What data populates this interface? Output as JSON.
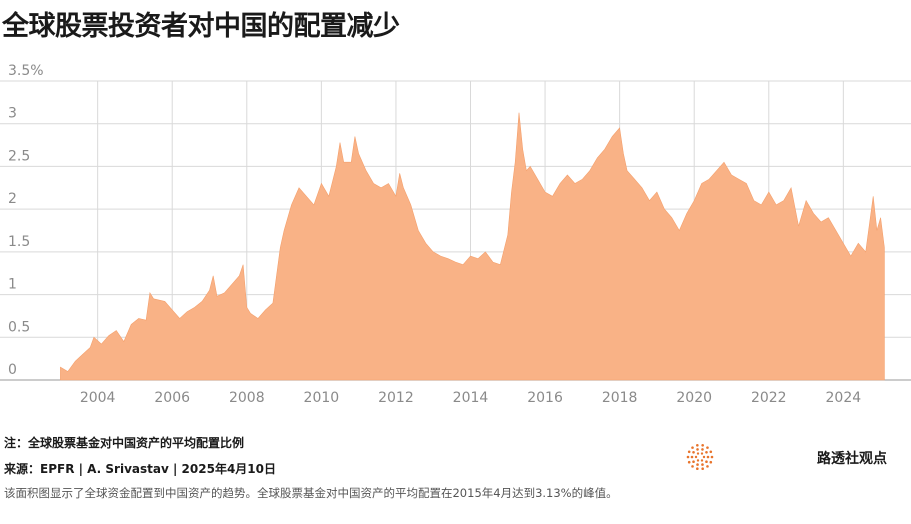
{
  "title": "全球股票投资者对中国的配置减少",
  "note": "注：全球股票基金对中国资产的平均配置比例",
  "source": "来源：EPFR | A. Srivastav | 2025年4月10日",
  "description": "该面积图显示了全球资金配置到中国资产的趋势。全球股票基金对中国资产的平均配置在2015年4月达到3.13%的峰值。",
  "brand": {
    "name": "路透社观点",
    "icon": "reuters-dot-logo-icon"
  },
  "colors": {
    "area": "#f9b286",
    "grid": "#d9d9d9",
    "axis_text": "#8a8a8a",
    "brand_orange": "#e8742c"
  },
  "chart_data": {
    "type": "area",
    "ylim": [
      0,
      3.5
    ],
    "xlim": [
      2002.4,
      2025.6
    ],
    "y_ticks": [
      0,
      0.5,
      1,
      1.5,
      2,
      2.5,
      3,
      3.5
    ],
    "y_tick_labels": [
      "0",
      "0.5",
      "1",
      "1.5",
      "2",
      "2.5",
      "3",
      "3.5%"
    ],
    "x_ticks": [
      2004,
      2006,
      2008,
      2010,
      2012,
      2014,
      2016,
      2018,
      2020,
      2022,
      2024
    ],
    "x_tick_labels": [
      "2004",
      "2006",
      "2008",
      "2010",
      "2012",
      "2014",
      "2016",
      "2018",
      "2020",
      "2022",
      "2024"
    ],
    "grid": true,
    "points": [
      [
        2003.0,
        0.15
      ],
      [
        2003.2,
        0.1
      ],
      [
        2003.4,
        0.22
      ],
      [
        2003.6,
        0.3
      ],
      [
        2003.8,
        0.38
      ],
      [
        2003.9,
        0.5
      ],
      [
        2004.1,
        0.42
      ],
      [
        2004.3,
        0.52
      ],
      [
        2004.5,
        0.58
      ],
      [
        2004.7,
        0.45
      ],
      [
        2004.9,
        0.65
      ],
      [
        2005.1,
        0.72
      ],
      [
        2005.3,
        0.7
      ],
      [
        2005.4,
        1.02
      ],
      [
        2005.5,
        0.95
      ],
      [
        2005.8,
        0.92
      ],
      [
        2006.0,
        0.82
      ],
      [
        2006.2,
        0.72
      ],
      [
        2006.4,
        0.8
      ],
      [
        2006.6,
        0.85
      ],
      [
        2006.8,
        0.92
      ],
      [
        2007.0,
        1.05
      ],
      [
        2007.1,
        1.22
      ],
      [
        2007.2,
        0.98
      ],
      [
        2007.4,
        1.02
      ],
      [
        2007.6,
        1.12
      ],
      [
        2007.8,
        1.22
      ],
      [
        2007.9,
        1.35
      ],
      [
        2008.0,
        0.85
      ],
      [
        2008.1,
        0.78
      ],
      [
        2008.3,
        0.72
      ],
      [
        2008.5,
        0.82
      ],
      [
        2008.7,
        0.9
      ],
      [
        2008.9,
        1.55
      ],
      [
        2009.0,
        1.75
      ],
      [
        2009.2,
        2.05
      ],
      [
        2009.4,
        2.25
      ],
      [
        2009.6,
        2.15
      ],
      [
        2009.8,
        2.05
      ],
      [
        2010.0,
        2.3
      ],
      [
        2010.2,
        2.15
      ],
      [
        2010.4,
        2.5
      ],
      [
        2010.5,
        2.78
      ],
      [
        2010.6,
        2.55
      ],
      [
        2010.8,
        2.55
      ],
      [
        2010.9,
        2.85
      ],
      [
        2011.0,
        2.65
      ],
      [
        2011.2,
        2.45
      ],
      [
        2011.4,
        2.3
      ],
      [
        2011.6,
        2.25
      ],
      [
        2011.8,
        2.3
      ],
      [
        2012.0,
        2.15
      ],
      [
        2012.1,
        2.42
      ],
      [
        2012.2,
        2.25
      ],
      [
        2012.4,
        2.05
      ],
      [
        2012.6,
        1.75
      ],
      [
        2012.8,
        1.6
      ],
      [
        2013.0,
        1.5
      ],
      [
        2013.2,
        1.45
      ],
      [
        2013.4,
        1.42
      ],
      [
        2013.6,
        1.38
      ],
      [
        2013.8,
        1.35
      ],
      [
        2014.0,
        1.45
      ],
      [
        2014.2,
        1.42
      ],
      [
        2014.4,
        1.5
      ],
      [
        2014.6,
        1.38
      ],
      [
        2014.8,
        1.35
      ],
      [
        2015.0,
        1.7
      ],
      [
        2015.1,
        2.2
      ],
      [
        2015.2,
        2.55
      ],
      [
        2015.3,
        3.13
      ],
      [
        2015.4,
        2.7
      ],
      [
        2015.5,
        2.45
      ],
      [
        2015.6,
        2.5
      ],
      [
        2015.8,
        2.35
      ],
      [
        2016.0,
        2.2
      ],
      [
        2016.2,
        2.15
      ],
      [
        2016.4,
        2.3
      ],
      [
        2016.6,
        2.4
      ],
      [
        2016.8,
        2.3
      ],
      [
        2017.0,
        2.35
      ],
      [
        2017.2,
        2.45
      ],
      [
        2017.4,
        2.6
      ],
      [
        2017.6,
        2.7
      ],
      [
        2017.8,
        2.85
      ],
      [
        2018.0,
        2.95
      ],
      [
        2018.1,
        2.65
      ],
      [
        2018.2,
        2.45
      ],
      [
        2018.4,
        2.35
      ],
      [
        2018.6,
        2.25
      ],
      [
        2018.8,
        2.1
      ],
      [
        2019.0,
        2.2
      ],
      [
        2019.2,
        2.0
      ],
      [
        2019.4,
        1.9
      ],
      [
        2019.6,
        1.75
      ],
      [
        2019.8,
        1.95
      ],
      [
        2020.0,
        2.1
      ],
      [
        2020.2,
        2.3
      ],
      [
        2020.4,
        2.35
      ],
      [
        2020.6,
        2.45
      ],
      [
        2020.8,
        2.55
      ],
      [
        2021.0,
        2.4
      ],
      [
        2021.2,
        2.35
      ],
      [
        2021.4,
        2.3
      ],
      [
        2021.6,
        2.1
      ],
      [
        2021.8,
        2.05
      ],
      [
        2022.0,
        2.2
      ],
      [
        2022.2,
        2.05
      ],
      [
        2022.4,
        2.1
      ],
      [
        2022.6,
        2.25
      ],
      [
        2022.8,
        1.8
      ],
      [
        2023.0,
        2.1
      ],
      [
        2023.2,
        1.95
      ],
      [
        2023.4,
        1.85
      ],
      [
        2023.6,
        1.9
      ],
      [
        2023.8,
        1.75
      ],
      [
        2024.0,
        1.6
      ],
      [
        2024.2,
        1.45
      ],
      [
        2024.4,
        1.6
      ],
      [
        2024.6,
        1.5
      ],
      [
        2024.8,
        2.15
      ],
      [
        2024.9,
        1.75
      ],
      [
        2025.0,
        1.9
      ],
      [
        2025.1,
        1.55
      ]
    ]
  }
}
